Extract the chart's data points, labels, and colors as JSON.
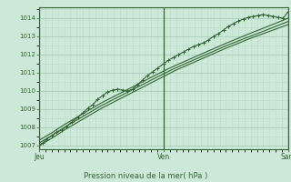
{
  "title": "Pression niveau de la mer( hPa )",
  "bg_color": "#cce8d8",
  "plot_bg_color": "#cce8d8",
  "grid_major_color": "#aaccbb",
  "grid_minor_color": "#bbddc8",
  "line_color": "#336633",
  "marker_color": "#336633",
  "text_color": "#336633",
  "ylim": [
    1006.8,
    1014.6
  ],
  "yticks": [
    1007,
    1008,
    1009,
    1010,
    1011,
    1012,
    1013,
    1014
  ],
  "xtick_labels": [
    "Jeu",
    "Ven",
    "Sam"
  ],
  "xtick_positions": [
    0.0,
    0.5,
    1.0
  ],
  "line1_x": [
    0.0,
    0.015,
    0.03,
    0.05,
    0.07,
    0.09,
    0.11,
    0.13,
    0.155,
    0.175,
    0.195,
    0.215,
    0.235,
    0.255,
    0.275,
    0.295,
    0.315,
    0.335,
    0.355,
    0.375,
    0.395,
    0.415,
    0.435,
    0.455,
    0.475,
    0.5,
    0.52,
    0.54,
    0.56,
    0.58,
    0.6,
    0.62,
    0.64,
    0.66,
    0.68,
    0.7,
    0.72,
    0.74,
    0.76,
    0.78,
    0.8,
    0.82,
    0.84,
    0.86,
    0.88,
    0.9,
    0.92,
    0.94,
    0.96,
    0.98,
    1.0
  ],
  "line1_y": [
    1007.05,
    1007.15,
    1007.35,
    1007.55,
    1007.75,
    1007.85,
    1008.05,
    1008.3,
    1008.55,
    1008.8,
    1009.05,
    1009.25,
    1009.55,
    1009.75,
    1009.95,
    1010.05,
    1010.1,
    1010.05,
    1010.0,
    1010.1,
    1010.35,
    1010.6,
    1010.85,
    1011.05,
    1011.25,
    1011.5,
    1011.7,
    1011.85,
    1012.0,
    1012.15,
    1012.3,
    1012.45,
    1012.55,
    1012.65,
    1012.8,
    1013.0,
    1013.15,
    1013.35,
    1013.55,
    1013.7,
    1013.85,
    1013.95,
    1014.05,
    1014.1,
    1014.15,
    1014.2,
    1014.15,
    1014.1,
    1014.05,
    1014.0,
    1014.35
  ],
  "line2_x": [
    0.0,
    0.05,
    0.1,
    0.15,
    0.2,
    0.25,
    0.3,
    0.35,
    0.4,
    0.45,
    0.5,
    0.55,
    0.6,
    0.65,
    0.7,
    0.75,
    0.8,
    0.85,
    0.9,
    0.95,
    1.0
  ],
  "line2_y": [
    1007.0,
    1007.4,
    1007.85,
    1008.25,
    1008.65,
    1009.05,
    1009.4,
    1009.75,
    1010.1,
    1010.45,
    1010.8,
    1011.15,
    1011.45,
    1011.75,
    1012.05,
    1012.35,
    1012.62,
    1012.9,
    1013.15,
    1013.4,
    1013.65
  ],
  "line3_x": [
    0.0,
    0.05,
    0.1,
    0.15,
    0.2,
    0.25,
    0.3,
    0.35,
    0.4,
    0.45,
    0.5,
    0.55,
    0.6,
    0.65,
    0.7,
    0.75,
    0.8,
    0.85,
    0.9,
    0.95,
    1.0
  ],
  "line3_y": [
    1007.15,
    1007.55,
    1008.0,
    1008.4,
    1008.8,
    1009.2,
    1009.55,
    1009.9,
    1010.25,
    1010.6,
    1010.95,
    1011.28,
    1011.58,
    1011.88,
    1012.18,
    1012.48,
    1012.75,
    1013.02,
    1013.28,
    1013.55,
    1013.82
  ],
  "line4_x": [
    0.0,
    0.05,
    0.1,
    0.15,
    0.2,
    0.25,
    0.3,
    0.35,
    0.4,
    0.45,
    0.5,
    0.55,
    0.6,
    0.65,
    0.7,
    0.75,
    0.8,
    0.85,
    0.9,
    0.95,
    1.0
  ],
  "line4_y": [
    1007.3,
    1007.7,
    1008.15,
    1008.55,
    1008.95,
    1009.35,
    1009.7,
    1010.05,
    1010.4,
    1010.75,
    1011.1,
    1011.42,
    1011.72,
    1012.02,
    1012.32,
    1012.62,
    1012.9,
    1013.18,
    1013.45,
    1013.72,
    1014.0
  ]
}
